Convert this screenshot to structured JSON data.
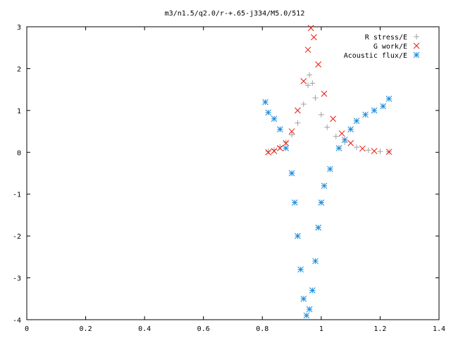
{
  "chart_data": {
    "type": "scatter",
    "title": "m3/n1.5/q2.0/r-+.65-j334/M5.0/512",
    "xlabel": "",
    "ylabel": "",
    "xlim": [
      0,
      1.4
    ],
    "ylim": [
      -4,
      3
    ],
    "xticks": [
      "0",
      "0.2",
      "0.4",
      "0.6",
      "0.8",
      "1",
      "1.2",
      "1.4"
    ],
    "yticks": [
      "-4",
      "-3",
      "-2",
      "-1",
      "0",
      "1",
      "2",
      "3"
    ],
    "grid": false,
    "legend_position": "top-right",
    "series": [
      {
        "name": "R stress/E",
        "marker": "plus",
        "color": "#a0a0a0",
        "points": [
          [
            0.82,
            0.02
          ],
          [
            0.84,
            0.06
          ],
          [
            0.86,
            0.13
          ],
          [
            0.88,
            0.24
          ],
          [
            0.9,
            0.42
          ],
          [
            0.92,
            0.7
          ],
          [
            0.94,
            1.15
          ],
          [
            0.955,
            1.6
          ],
          [
            0.96,
            1.85
          ],
          [
            0.97,
            1.65
          ],
          [
            0.98,
            1.3
          ],
          [
            1.0,
            0.9
          ],
          [
            1.02,
            0.6
          ],
          [
            1.05,
            0.38
          ],
          [
            1.08,
            0.24
          ],
          [
            1.12,
            0.12
          ],
          [
            1.16,
            0.05
          ],
          [
            1.2,
            0.02
          ],
          [
            1.23,
            0.01
          ]
        ]
      },
      {
        "name": "G work/E",
        "marker": "x",
        "color": "#e8190c",
        "points": [
          [
            0.82,
            0.0
          ],
          [
            0.84,
            0.03
          ],
          [
            0.86,
            0.1
          ],
          [
            0.88,
            0.22
          ],
          [
            0.9,
            0.5
          ],
          [
            0.92,
            1.0
          ],
          [
            0.94,
            1.7
          ],
          [
            0.955,
            2.45
          ],
          [
            0.965,
            2.97
          ],
          [
            0.975,
            2.75
          ],
          [
            0.99,
            2.1
          ],
          [
            1.01,
            1.4
          ],
          [
            1.04,
            0.8
          ],
          [
            1.07,
            0.45
          ],
          [
            1.1,
            0.22
          ],
          [
            1.14,
            0.09
          ],
          [
            1.18,
            0.03
          ],
          [
            1.23,
            0.01
          ]
        ]
      },
      {
        "name": "Acoustic flux/E",
        "marker": "asterisk",
        "color": "#1a8bdc",
        "points": [
          [
            0.81,
            1.2
          ],
          [
            0.82,
            0.95
          ],
          [
            0.84,
            0.8
          ],
          [
            0.86,
            0.55
          ],
          [
            0.88,
            0.1
          ],
          [
            0.9,
            -0.5
          ],
          [
            0.91,
            -1.2
          ],
          [
            0.92,
            -2.0
          ],
          [
            0.93,
            -2.8
          ],
          [
            0.94,
            -3.5
          ],
          [
            0.95,
            -3.9
          ],
          [
            0.96,
            -3.75
          ],
          [
            0.97,
            -3.3
          ],
          [
            0.98,
            -2.6
          ],
          [
            0.99,
            -1.8
          ],
          [
            1.0,
            -1.2
          ],
          [
            1.01,
            -0.8
          ],
          [
            1.03,
            -0.4
          ],
          [
            1.06,
            0.1
          ],
          [
            1.08,
            0.3
          ],
          [
            1.1,
            0.55
          ],
          [
            1.12,
            0.75
          ],
          [
            1.15,
            0.9
          ],
          [
            1.18,
            1.0
          ],
          [
            1.21,
            1.1
          ],
          [
            1.23,
            1.28
          ]
        ]
      }
    ]
  }
}
